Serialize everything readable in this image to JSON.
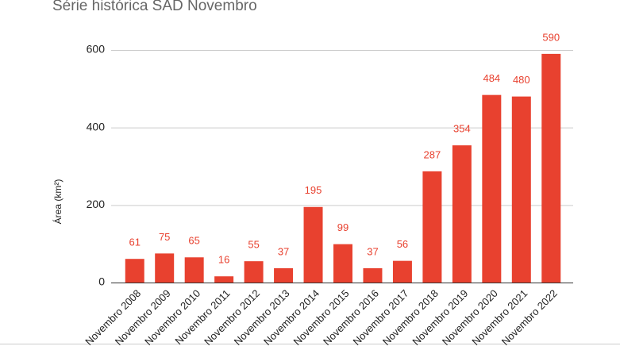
{
  "chart_data": {
    "type": "bar",
    "title": "Série histórica SAD Novembro",
    "y_label": "Área (km²)",
    "categories": [
      "Novembro 2008",
      "Novembro 2009",
      "Novembro 2010",
      "Novembro 2011",
      "Novembro 2012",
      "Novembro 2013",
      "Novembro 2014",
      "Novembro 2015",
      "Novembro 2016",
      "Novembro 2017",
      "Novembro 2018",
      "Novembro 2019",
      "Novembro 2020",
      "Novembro 2021",
      "Novembro 2022"
    ],
    "values": [
      61,
      75,
      65,
      16,
      55,
      37,
      195,
      99,
      37,
      56,
      287,
      354,
      484,
      480,
      590
    ],
    "color": "#e8412f",
    "ylim": [
      0,
      600
    ],
    "yticks": [
      0,
      200,
      400,
      600
    ],
    "grid": true
  }
}
